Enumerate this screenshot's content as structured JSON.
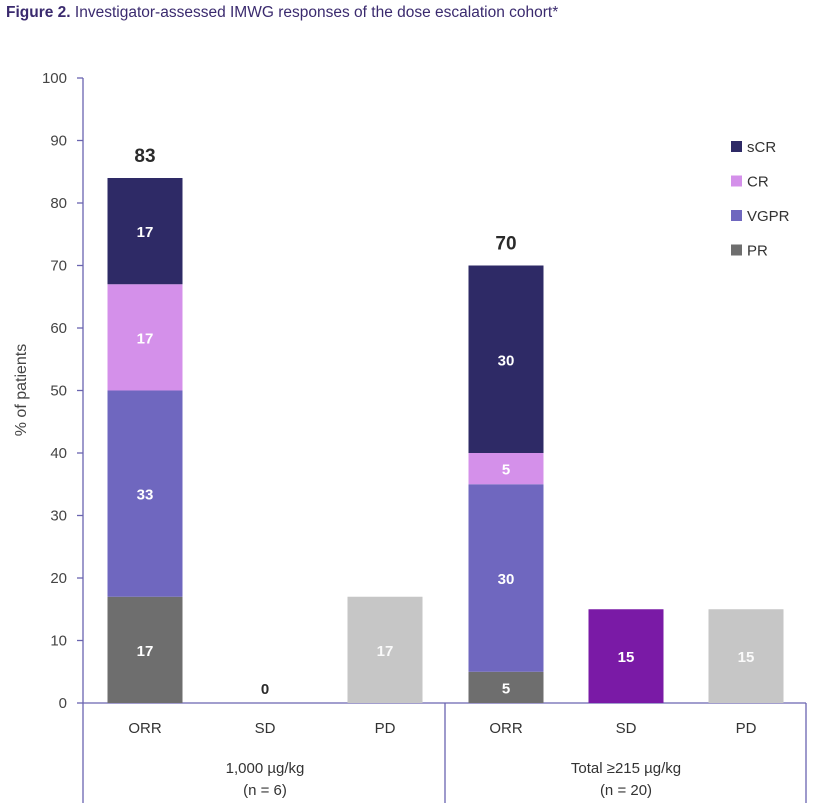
{
  "figure": {
    "label": "Figure 2.",
    "caption": "Investigator-assessed IMWG responses of the dose escalation cohort*"
  },
  "chart_data": {
    "type": "bar",
    "stacked": true,
    "ylabel": "% of patients",
    "ylim": [
      0,
      100
    ],
    "yticks": [
      0,
      10,
      20,
      30,
      40,
      50,
      60,
      70,
      80,
      90,
      100
    ],
    "legend_position": "top-right",
    "legend": [
      {
        "name": "sCR",
        "color": "#2e2a66"
      },
      {
        "name": "CR",
        "color": "#d490ea"
      },
      {
        "name": "VGPR",
        "color": "#6f67bf"
      },
      {
        "name": "PR",
        "color": "#6e6e6e"
      }
    ],
    "groups": [
      {
        "label": "1,000 µg/kg",
        "sublabel": "(n = 6)",
        "bars": [
          {
            "category": "ORR",
            "total_label": "83",
            "segments": [
              {
                "name": "PR",
                "value": 17,
                "label": "17",
                "color": "#6e6e6e"
              },
              {
                "name": "VGPR",
                "value": 33,
                "label": "33",
                "color": "#6f67bf"
              },
              {
                "name": "CR",
                "value": 17,
                "label": "17",
                "color": "#d490ea"
              },
              {
                "name": "sCR",
                "value": 17,
                "label": "17",
                "color": "#2e2a66"
              }
            ]
          },
          {
            "category": "SD",
            "total_label": "0",
            "segments": []
          },
          {
            "category": "PD",
            "segments": [
              {
                "name": "PD",
                "value": 17,
                "label": "17",
                "color": "#c6c6c6"
              }
            ]
          }
        ]
      },
      {
        "label": "Total ≥215 µg/kg",
        "sublabel": "(n = 20)",
        "bars": [
          {
            "category": "ORR",
            "total_label": "70",
            "segments": [
              {
                "name": "PR",
                "value": 5,
                "label": "5",
                "color": "#6e6e6e"
              },
              {
                "name": "VGPR",
                "value": 30,
                "label": "30",
                "color": "#6f67bf"
              },
              {
                "name": "CR",
                "value": 5,
                "label": "5",
                "color": "#d490ea"
              },
              {
                "name": "sCR",
                "value": 30,
                "label": "30",
                "color": "#2e2a66"
              }
            ]
          },
          {
            "category": "SD",
            "segments": [
              {
                "name": "SD",
                "value": 15,
                "label": "15",
                "color": "#7a1aa6"
              }
            ]
          },
          {
            "category": "PD",
            "segments": [
              {
                "name": "PD",
                "value": 15,
                "label": "15",
                "color": "#c6c6c6"
              }
            ]
          }
        ]
      }
    ]
  }
}
